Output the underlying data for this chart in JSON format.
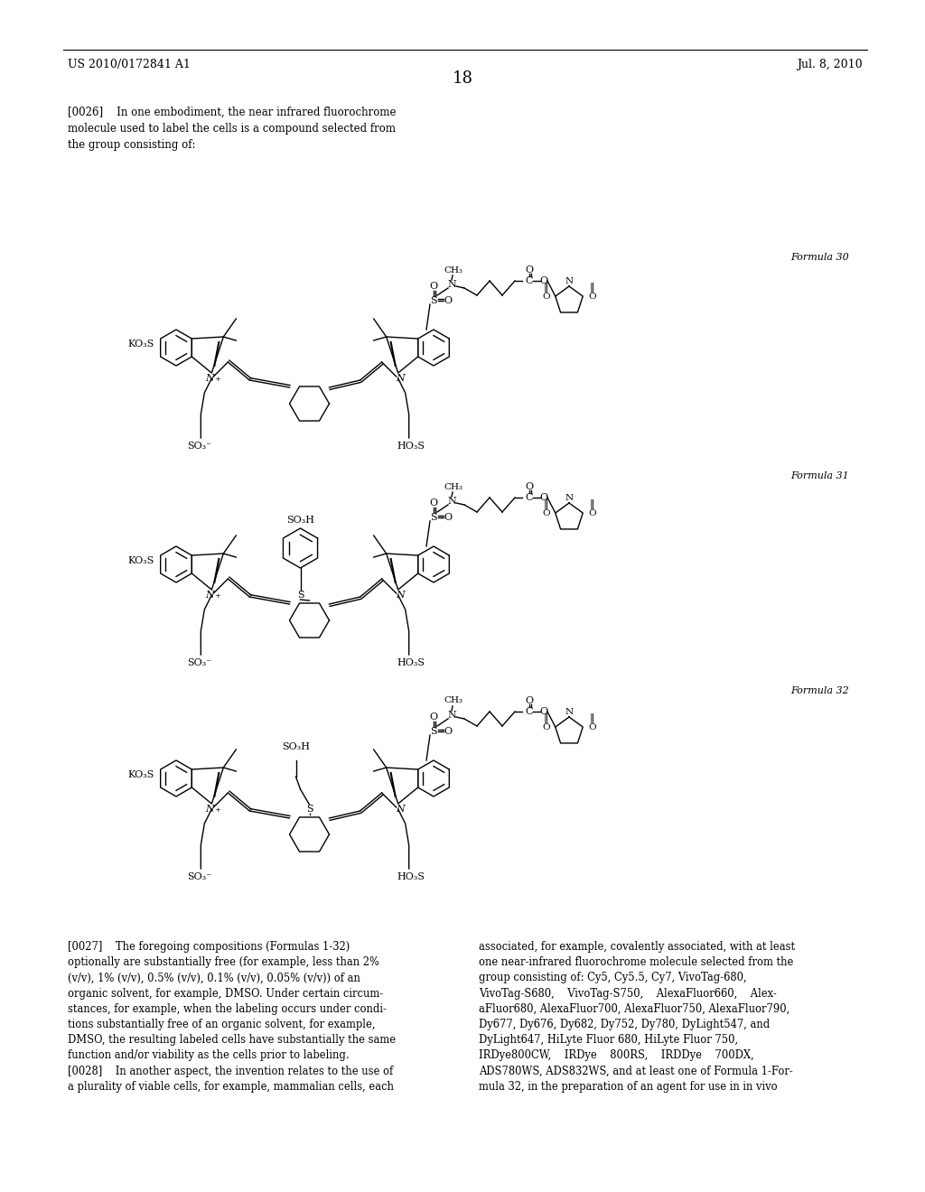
{
  "bg": "#ffffff",
  "header_left": "US 2010/0172841 A1",
  "header_right": "Jul. 8, 2010",
  "page_num": "18",
  "para0026": "[0026]    In one embodiment, the near infrared fluorochrome\nmolecule used to label the cells is a compound selected from\nthe group consisting of:",
  "formula_labels": [
    "Formula 30",
    "Formula 31",
    "Formula 32"
  ],
  "para0027": "[0027]    The foregoing compositions (Formulas 1-32)\noptionally are substantially free (for example, less than 2%\n(v/v), 1% (v/v), 0.5% (v/v), 0.1% (v/v), 0.05% (v/v)) of an\norganic solvent, for example, DMSO. Under certain circum-\nstances, for example, when the labeling occurs under condi-\ntions substantially free of an organic solvent, for example,\nDMSO, the resulting labeled cells have substantially the same\nfunction and/or viability as the cells prior to labeling.\n[0028]    In another aspect, the invention relates to the use of\na plurality of viable cells, for example, mammalian cells, each",
  "para0027_right": "associated, for example, covalently associated, with at least\none near-infrared fluorochrome molecule selected from the\ngroup consisting of: Cy5, Cy5.5, Cy7, VivoTag-680,\nVivoTag-S680,    VivoTag-S750,    AlexaFluor660,    Alex-\naFluor680, AlexaFluor700, AlexaFluor750, AlexaFluor790,\nDy677, Dy676, Dy682, Dy752, Dy780, DyLight547, and\nDyLight647, HiLyte Fluor 680, HiLyte Fluor 750,\nIRDye800CW,    IRDye    800RS,    IRDDye    700DX,\nADS780WS, ADS832WS, and at least one of Formula 1-For-\nmula 32, in the preparation of an agent for use in in vivo"
}
